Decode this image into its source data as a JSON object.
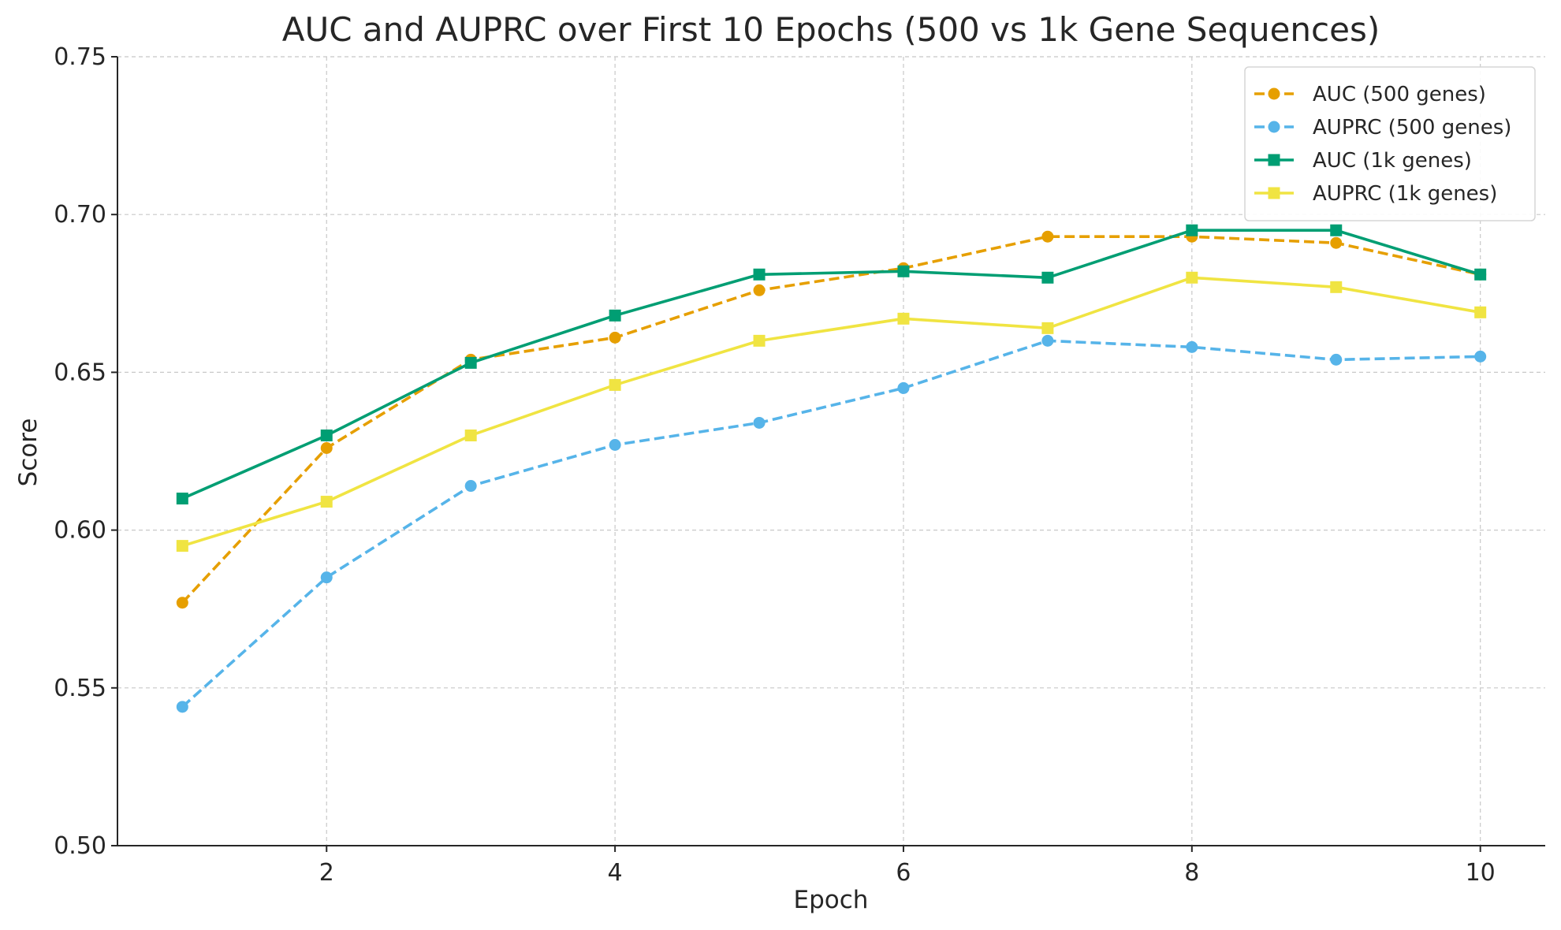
{
  "chart_data": {
    "type": "line",
    "title": "AUC and AUPRC over First 10 Epochs (500 vs 1k Gene Sequences)",
    "xlabel": "Epoch",
    "ylabel": "Score",
    "xlim": [
      0.55,
      10.45
    ],
    "ylim": [
      0.5,
      0.75
    ],
    "xticks": [
      2,
      4,
      6,
      8,
      10
    ],
    "yticks": [
      0.5,
      0.55,
      0.6,
      0.65,
      0.7,
      0.75
    ],
    "xtick_labels": [
      "2",
      "4",
      "6",
      "8",
      "10"
    ],
    "ytick_labels": [
      "0.50",
      "0.55",
      "0.60",
      "0.65",
      "0.70",
      "0.75"
    ],
    "grid": true,
    "legend_position": "top-right",
    "x": [
      1,
      2,
      3,
      4,
      5,
      6,
      7,
      8,
      9,
      10
    ],
    "series": [
      {
        "name": "AUC (500 genes)",
        "color": "#e69f00",
        "line_style": "dashed",
        "marker": "circle",
        "values": [
          0.577,
          0.626,
          0.654,
          0.661,
          0.676,
          0.683,
          0.693,
          0.693,
          0.691,
          0.681
        ]
      },
      {
        "name": "AUPRC (500 genes)",
        "color": "#56b4e9",
        "line_style": "dashed",
        "marker": "circle",
        "values": [
          0.544,
          0.585,
          0.614,
          0.627,
          0.634,
          0.645,
          0.66,
          0.658,
          0.654,
          0.655
        ]
      },
      {
        "name": "AUC (1k genes)",
        "color": "#009e73",
        "line_style": "solid",
        "marker": "square",
        "values": [
          0.61,
          0.63,
          0.653,
          0.668,
          0.681,
          0.682,
          0.68,
          0.695,
          0.695,
          0.681
        ]
      },
      {
        "name": "AUPRC (1k genes)",
        "color": "#f0e442",
        "line_style": "solid",
        "marker": "square",
        "values": [
          0.595,
          0.609,
          0.63,
          0.646,
          0.66,
          0.667,
          0.664,
          0.68,
          0.677,
          0.669
        ]
      }
    ]
  }
}
